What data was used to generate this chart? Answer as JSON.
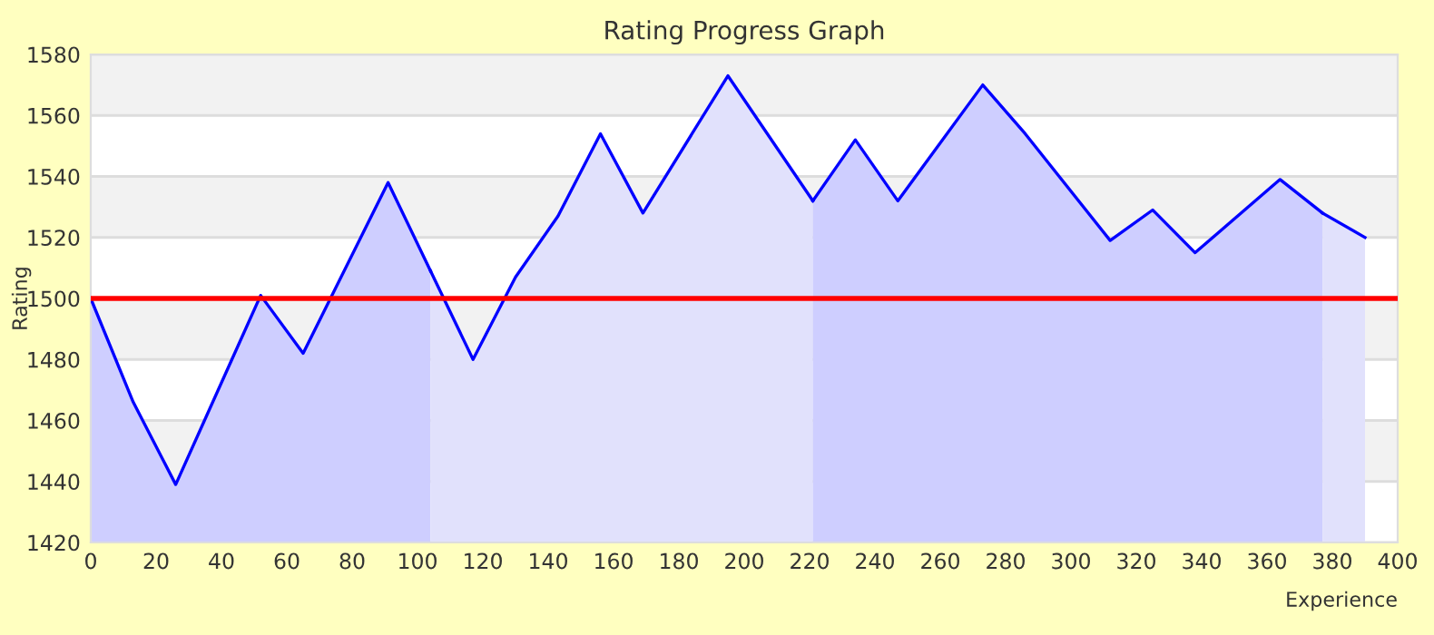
{
  "chart_data": {
    "type": "area",
    "title": "Rating Progress Graph",
    "xlabel": "Experience",
    "ylabel": "Rating",
    "series": [
      {
        "color": "#ceceff",
        "x": [
          0,
          13,
          26,
          52,
          65,
          91,
          104
        ],
        "values": [
          1500,
          1466,
          1439,
          1501,
          1482,
          1538,
          1509
        ]
      },
      {
        "color": "#e1e1fc",
        "x": [
          104,
          117,
          130,
          143,
          156,
          169,
          195,
          221
        ],
        "values": [
          1509,
          1480,
          1507,
          1527,
          1554,
          1528,
          1573,
          1532
        ]
      },
      {
        "color": "#ceceff",
        "x": [
          221,
          234,
          247,
          273,
          286,
          312,
          325,
          338,
          364,
          377
        ],
        "values": [
          1532,
          1552,
          1532,
          1570,
          1554,
          1519,
          1529,
          1515,
          1539,
          1528
        ]
      },
      {
        "color": "#e1e1fc",
        "x": [
          377,
          390
        ],
        "values": [
          1528,
          1520
        ]
      }
    ],
    "xlim": [
      0,
      400
    ],
    "xticks": [
      0,
      20,
      40,
      60,
      80,
      100,
      120,
      140,
      160,
      180,
      200,
      220,
      240,
      260,
      280,
      300,
      320,
      340,
      360,
      380,
      400
    ],
    "ylim": [
      1420,
      1580
    ],
    "yticks": [
      1420,
      1440,
      1460,
      1480,
      1500,
      1520,
      1540,
      1560,
      1580
    ],
    "ref_lines": [
      {
        "axis": "y",
        "value": 1500,
        "color": "#ff0000"
      }
    ],
    "grid": "y",
    "legend": false
  }
}
